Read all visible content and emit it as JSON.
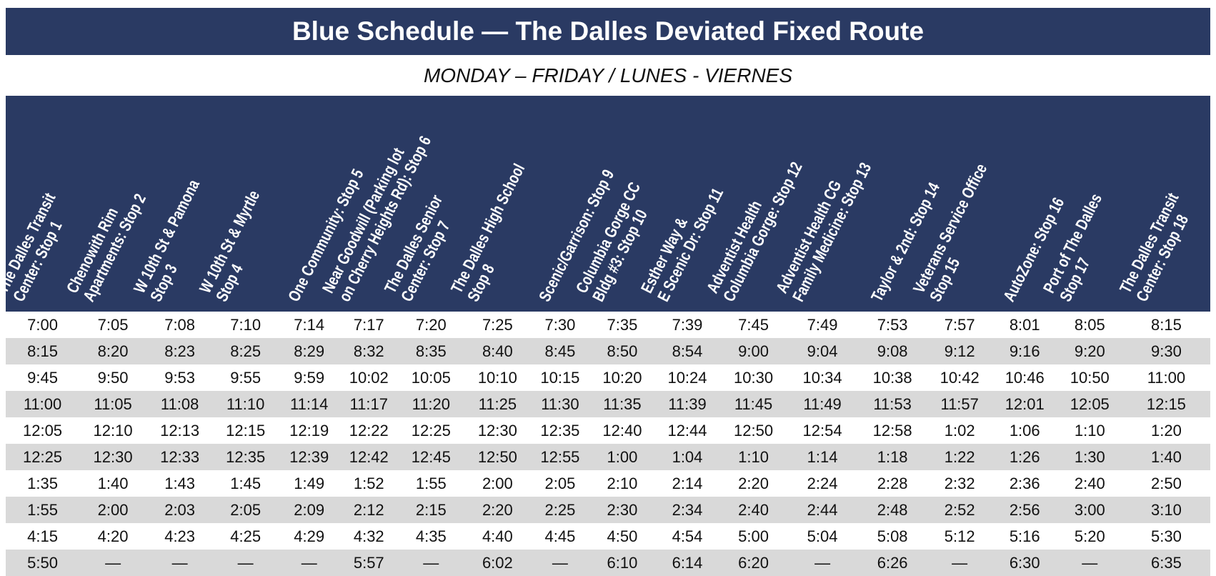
{
  "header": {
    "title": "Blue Schedule — The Dalles Deviated Fixed Route",
    "subtitle": "MONDAY – FRIDAY / LUNES - VIERNES"
  },
  "table": {
    "columns": [
      [
        "The Dalles Transit",
        "Center: Stop 1"
      ],
      [
        "Chenowith Rim",
        "Apartments: Stop 2"
      ],
      [
        "W 10th St & Pamona",
        "Stop 3"
      ],
      [
        "W 10th St & Myrtle",
        "Stop 4"
      ],
      [
        "One Community: Stop 5"
      ],
      [
        "Near Goodwill (Parking lot",
        "on Cherry Heights Rd): Stop 6"
      ],
      [
        "The Dalles Senior",
        "Center: Stop 7"
      ],
      [
        "The Dalles High School",
        "Stop 8"
      ],
      [
        "Scenic/Garrison: Stop 9"
      ],
      [
        "Columbia Gorge CC",
        "Bldg #3: Stop 10"
      ],
      [
        "Esther Way &",
        "E Scenic Dr: Stop 11"
      ],
      [
        "Adventist Health",
        "Columbia Gorge: Stop 12"
      ],
      [
        "Adventist Health CG",
        "Family Medicine: Stop 13"
      ],
      [
        "Taylor & 2nd: Stop 14"
      ],
      [
        "Veterans Service Office",
        "Stop 15"
      ],
      [
        "AutoZone: Stop 16"
      ],
      [
        "Port of The Dalles",
        "Stop 17"
      ],
      [
        "The Dalles Transit",
        "Center: Stop 18"
      ]
    ],
    "rows": [
      [
        "7:00",
        "7:05",
        "7:08",
        "7:10",
        "7:14",
        "7:17",
        "7:20",
        "7:25",
        "7:30",
        "7:35",
        "7:39",
        "7:45",
        "7:49",
        "7:53",
        "7:57",
        "8:01",
        "8:05",
        "8:15"
      ],
      [
        "8:15",
        "8:20",
        "8:23",
        "8:25",
        "8:29",
        "8:32",
        "8:35",
        "8:40",
        "8:45",
        "8:50",
        "8:54",
        "9:00",
        "9:04",
        "9:08",
        "9:12",
        "9:16",
        "9:20",
        "9:30"
      ],
      [
        "9:45",
        "9:50",
        "9:53",
        "9:55",
        "9:59",
        "10:02",
        "10:05",
        "10:10",
        "10:15",
        "10:20",
        "10:24",
        "10:30",
        "10:34",
        "10:38",
        "10:42",
        "10:46",
        "10:50",
        "11:00"
      ],
      [
        "11:00",
        "11:05",
        "11:08",
        "11:10",
        "11:14",
        "11:17",
        "11:20",
        "11:25",
        "11:30",
        "11:35",
        "11:39",
        "11:45",
        "11:49",
        "11:53",
        "11:57",
        "12:01",
        "12:05",
        "12:15"
      ],
      [
        "12:05",
        "12:10",
        "12:13",
        "12:15",
        "12:19",
        "12:22",
        "12:25",
        "12:30",
        "12:35",
        "12:40",
        "12:44",
        "12:50",
        "12:54",
        "12:58",
        "1:02",
        "1:06",
        "1:10",
        "1:20"
      ],
      [
        "12:25",
        "12:30",
        "12:33",
        "12:35",
        "12:39",
        "12:42",
        "12:45",
        "12:50",
        "12:55",
        "1:00",
        "1:04",
        "1:10",
        "1:14",
        "1:18",
        "1:22",
        "1:26",
        "1:30",
        "1:40"
      ],
      [
        "1:35",
        "1:40",
        "1:43",
        "1:45",
        "1:49",
        "1:52",
        "1:55",
        "2:00",
        "2:05",
        "2:10",
        "2:14",
        "2:20",
        "2:24",
        "2:28",
        "2:32",
        "2:36",
        "2:40",
        "2:50"
      ],
      [
        "1:55",
        "2:00",
        "2:03",
        "2:05",
        "2:09",
        "2:12",
        "2:15",
        "2:20",
        "2:25",
        "2:30",
        "2:34",
        "2:40",
        "2:44",
        "2:48",
        "2:52",
        "2:56",
        "3:00",
        "3:10"
      ],
      [
        "4:15",
        "4:20",
        "4:23",
        "4:25",
        "4:29",
        "4:32",
        "4:35",
        "4:40",
        "4:45",
        "4:50",
        "4:54",
        "5:00",
        "5:04",
        "5:08",
        "5:12",
        "5:16",
        "5:20",
        "5:30"
      ],
      [
        "5:50",
        "—",
        "—",
        "—",
        "—",
        "5:57",
        "—",
        "6:02",
        "—",
        "6:10",
        "6:14",
        "6:20",
        "—",
        "6:26",
        "—",
        "6:30",
        "—",
        "6:35"
      ]
    ]
  }
}
